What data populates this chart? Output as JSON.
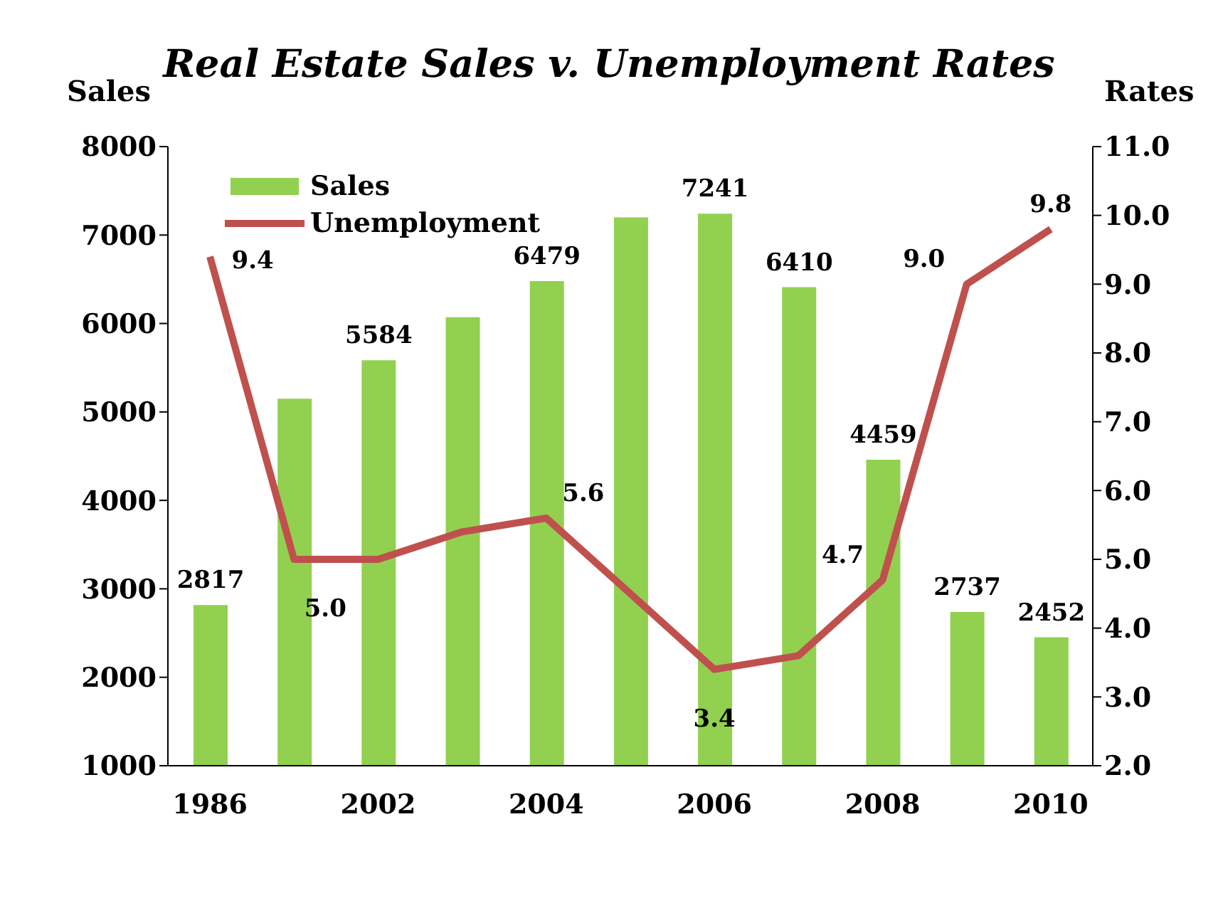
{
  "chart_data": {
    "type": "bar",
    "title": "Real Estate Sales v. Unemployment Rates",
    "ylabel": "Sales",
    "y2label": "Rates",
    "categories": [
      "1986",
      null,
      "2002",
      null,
      "2004",
      null,
      "2006",
      null,
      "2008",
      null,
      "2010"
    ],
    "series": [
      {
        "name": "Sales",
        "color": "#92d050",
        "values": [
          2817,
          5150,
          5584,
          6070,
          6479,
          7200,
          7241,
          6410,
          4459,
          2737,
          2452
        ],
        "value_labels": [
          "2817",
          null,
          "5584",
          null,
          "6479",
          null,
          "7241",
          "6410",
          "4459",
          "2737",
          "2452"
        ]
      },
      {
        "name": "Unemployment",
        "type": "line",
        "axis": "y2",
        "color": "#c0504d",
        "values": [
          9.4,
          5.0,
          5.0,
          5.4,
          5.6,
          4.5,
          3.4,
          3.6,
          4.7,
          9.0,
          9.8
        ],
        "value_labels": [
          "9.4",
          "5.0",
          null,
          null,
          "5.6",
          null,
          "3.4",
          null,
          "4.7",
          "9.0",
          "9.8"
        ]
      }
    ],
    "ylim": [
      1000,
      8000
    ],
    "yticks": [
      1000,
      2000,
      3000,
      4000,
      5000,
      6000,
      7000,
      8000
    ],
    "y2lim": [
      2,
      11
    ],
    "y2ticks": [
      {
        "value": 2,
        "label": "2.0"
      },
      {
        "value": 3,
        "label": "3.0"
      },
      {
        "value": 4,
        "label": "4.0"
      },
      {
        "value": 5,
        "label": "5.0"
      },
      {
        "value": 6,
        "label": "6.0"
      },
      {
        "value": 7,
        "label": "7.0"
      },
      {
        "value": 8,
        "label": "8.0"
      },
      {
        "value": 9,
        "label": "9.0"
      },
      {
        "value": 10,
        "label": "10.0"
      },
      {
        "value": 11,
        "label": "11.0"
      }
    ],
    "grid": false,
    "legend": "top left",
    "marker": "none",
    "line_style": "solid"
  }
}
